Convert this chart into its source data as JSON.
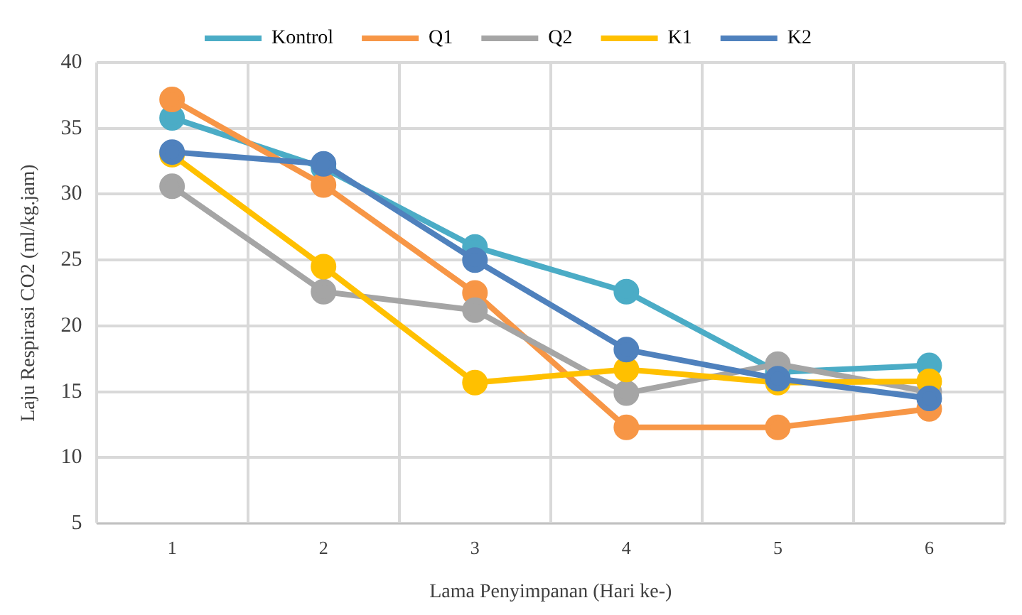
{
  "chart_data": {
    "type": "line",
    "xlabel": "Lama Penyimpanan (Hari ke-)",
    "ylabel": "Laju Respirasi CO2 (ml/kg.jam)",
    "categories": [
      "1",
      "2",
      "3",
      "4",
      "5",
      "6"
    ],
    "series": [
      {
        "name": "Kontrol",
        "color": "#4bacc6",
        "values": [
          35.8,
          32.0,
          26.0,
          22.6,
          16.5,
          17.0
        ]
      },
      {
        "name": "Q1",
        "color": "#f79646",
        "values": [
          37.2,
          30.7,
          22.5,
          12.3,
          12.3,
          13.7
        ]
      },
      {
        "name": "Q2",
        "color": "#a5a5a5",
        "values": [
          30.6,
          22.6,
          21.2,
          14.9,
          17.1,
          15.0
        ]
      },
      {
        "name": "K1",
        "color": "#ffc000",
        "values": [
          33.0,
          24.5,
          15.7,
          16.7,
          15.7,
          15.8
        ]
      },
      {
        "name": "K2",
        "color": "#4f81bd",
        "values": [
          33.2,
          32.3,
          25.0,
          18.2,
          16.0,
          14.5
        ]
      }
    ],
    "ylim": [
      5,
      40
    ],
    "yticks": [
      5,
      10,
      15,
      20,
      25,
      30,
      35,
      40
    ],
    "grid": true,
    "legend": "top",
    "marker": "circle",
    "line_style": "solid"
  }
}
